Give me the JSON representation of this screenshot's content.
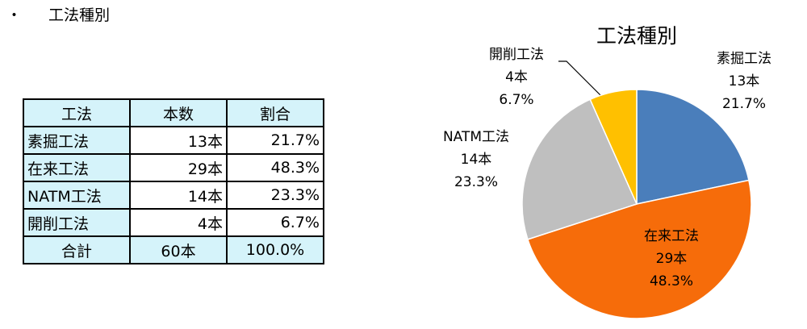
{
  "heading": {
    "bullet": "・",
    "title": "工法種別"
  },
  "table": {
    "header": [
      "工法",
      "本数",
      "割合"
    ],
    "rows": [
      [
        "素掘工法",
        "13本",
        "21.7%"
      ],
      [
        "在来工法",
        "29本",
        "48.3%"
      ],
      [
        "NATM工法",
        "14本",
        "23.3%"
      ],
      [
        "開削工法",
        "4本",
        "6.7%"
      ]
    ],
    "total": [
      "合計",
      "60本",
      "100.0%"
    ]
  },
  "chart_data": {
    "type": "pie",
    "title": "工法種別",
    "categories": [
      "素掘工法",
      "在来工法",
      "NATM工法",
      "開削工法"
    ],
    "values": [
      13,
      29,
      14,
      4
    ],
    "value_labels": [
      "13本",
      "29本",
      "14本",
      "4本"
    ],
    "percents": [
      21.7,
      48.3,
      23.3,
      6.7
    ],
    "percent_labels": [
      "21.7%",
      "48.3%",
      "23.3%",
      "6.7%"
    ],
    "colors": [
      "#4a7ebb",
      "#f66c0a",
      "#bfbfbf",
      "#ffc000"
    ]
  }
}
